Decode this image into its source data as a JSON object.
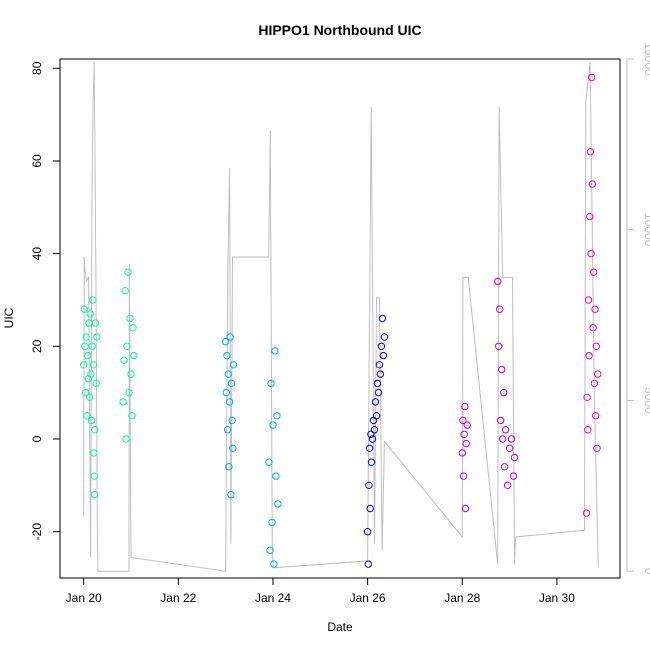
{
  "chart_data": {
    "type": "scatter",
    "title": "HIPPO1 Northbound UIC",
    "xlabel": "Date",
    "ylabel": "UIC",
    "xlim": [
      "2009-01-19T12:00",
      "2009-01-31T08:00"
    ],
    "ylim": [
      -30,
      82
    ],
    "y2lim": [
      -200,
      15000
    ],
    "x_ticks": [
      "Jan 20",
      "Jan 22",
      "Jan 24",
      "Jan 26",
      "Jan 28",
      "Jan 30"
    ],
    "x_tick_values": [
      "2009-01-20",
      "2009-01-22",
      "2009-01-24",
      "2009-01-26",
      "2009-01-28",
      "2009-01-30"
    ],
    "y_ticks": [
      "-20",
      "0",
      "20",
      "40",
      "60",
      "80"
    ],
    "y_tick_values": [
      -20,
      0,
      20,
      40,
      60,
      80
    ],
    "y2_ticks": [
      "0",
      "5000",
      "10000",
      "15000"
    ],
    "y2_tick_values": [
      0,
      5000,
      10000,
      15000
    ],
    "grid": false,
    "colors": {
      "altitude": "#bebebe",
      "flight_1": "#00ff99",
      "flight_2": "#00aaff",
      "flight_3": "#0000ff",
      "flight_4": "#aa00ff",
      "flight_5": "#ff00aa"
    },
    "altitude_series": [
      [
        "2009-01-20T00:00",
        1600
      ],
      [
        "2009-01-20T00:15",
        9200
      ],
      [
        "2009-01-20T00:40",
        8800
      ],
      [
        "2009-01-20T01:30",
        8500
      ],
      [
        "2009-01-20T02:30",
        8600
      ],
      [
        "2009-01-20T03:30",
        400
      ],
      [
        "2009-01-20T04:10",
        10800
      ],
      [
        "2009-01-20T04:40",
        13500
      ],
      [
        "2009-01-20T05:20",
        14900
      ],
      [
        "2009-01-20T06:10",
        9000
      ],
      [
        "2009-01-20T07:00",
        600
      ],
      [
        "2009-01-20T07:20",
        0
      ],
      [
        "2009-01-20T23:00",
        0
      ],
      [
        "2009-01-20T23:10",
        9000
      ],
      [
        "2009-01-21T00:00",
        400
      ],
      [
        "2009-01-23T00:00",
        0
      ],
      [
        "2009-01-23T01:10",
        9000
      ],
      [
        "2009-01-23T02:00",
        11800
      ],
      [
        "2009-01-23T02:40",
        800
      ],
      [
        "2009-01-23T03:30",
        9200
      ],
      [
        "2009-01-23T21:50",
        9200
      ],
      [
        "2009-01-23T22:40",
        12900
      ],
      [
        "2009-01-23T23:40",
        500
      ],
      [
        "2009-01-24T00:30",
        100
      ],
      [
        "2009-01-26T00:00",
        300
      ],
      [
        "2009-01-26T01:50",
        13600
      ],
      [
        "2009-01-26T03:30",
        800
      ],
      [
        "2009-01-26T04:30",
        8000
      ],
      [
        "2009-01-26T06:00",
        8000
      ],
      [
        "2009-01-26T07:20",
        600
      ],
      [
        "2009-01-26T08:30",
        3800
      ],
      [
        "2009-01-28T00:00",
        1000
      ],
      [
        "2009-01-28T00:20",
        8600
      ],
      [
        "2009-01-28T03:00",
        8600
      ],
      [
        "2009-01-28T18:00",
        200
      ],
      [
        "2009-01-28T18:40",
        13600
      ],
      [
        "2009-01-28T20:30",
        8600
      ],
      [
        "2009-01-29T01:30",
        8600
      ],
      [
        "2009-01-29T02:30",
        200
      ],
      [
        "2009-01-29T03:00",
        1000
      ],
      [
        "2009-01-30T14:00",
        1200
      ],
      [
        "2009-01-30T14:40",
        13800
      ],
      [
        "2009-01-30T16:50",
        14900
      ],
      [
        "2009-01-30T19:00",
        5000
      ],
      [
        "2009-01-30T21:00",
        100
      ]
    ],
    "series": [
      {
        "points": [
          [
            "2009-01-20T00:00",
            16
          ],
          [
            "2009-01-20T00:20",
            28
          ],
          [
            "2009-01-20T00:40",
            20
          ],
          [
            "2009-01-20T01:00",
            10
          ],
          [
            "2009-01-20T01:20",
            22
          ],
          [
            "2009-01-20T01:40",
            5
          ],
          [
            "2009-01-20T02:00",
            18
          ],
          [
            "2009-01-20T02:20",
            13
          ],
          [
            "2009-01-20T02:40",
            25
          ],
          [
            "2009-01-20T03:00",
            9
          ],
          [
            "2009-01-20T03:20",
            27
          ],
          [
            "2009-01-20T03:40",
            14
          ],
          [
            "2009-01-20T04:00",
            4
          ],
          [
            "2009-01-20T04:20",
            20
          ],
          [
            "2009-01-20T04:40",
            30
          ],
          [
            "2009-01-20T05:00",
            16
          ],
          [
            "2009-01-20T05:10",
            -3
          ],
          [
            "2009-01-20T05:20",
            -8
          ],
          [
            "2009-01-20T05:30",
            -12
          ],
          [
            "2009-01-20T05:40",
            2
          ],
          [
            "2009-01-20T06:00",
            25
          ],
          [
            "2009-01-20T06:20",
            12
          ],
          [
            "2009-01-20T06:40",
            22
          ],
          [
            "2009-01-20T20:00",
            8
          ],
          [
            "2009-01-20T20:30",
            17
          ],
          [
            "2009-01-20T21:00",
            32
          ],
          [
            "2009-01-20T21:30",
            0
          ],
          [
            "2009-01-20T22:00",
            20
          ],
          [
            "2009-01-20T22:30",
            36
          ],
          [
            "2009-01-20T23:00",
            10
          ],
          [
            "2009-01-20T23:30",
            26
          ],
          [
            "2009-01-21T00:00",
            14
          ],
          [
            "2009-01-21T00:30",
            5
          ],
          [
            "2009-01-21T01:00",
            24
          ],
          [
            "2009-01-21T01:30",
            18
          ]
        ]
      },
      {
        "points": [
          [
            "2009-01-23T00:00",
            21
          ],
          [
            "2009-01-23T00:20",
            10
          ],
          [
            "2009-01-23T00:40",
            18
          ],
          [
            "2009-01-23T01:00",
            2
          ],
          [
            "2009-01-23T01:20",
            14
          ],
          [
            "2009-01-23T01:40",
            -6
          ],
          [
            "2009-01-23T02:00",
            8
          ],
          [
            "2009-01-23T02:20",
            22
          ],
          [
            "2009-01-23T02:40",
            -12
          ],
          [
            "2009-01-23T03:00",
            12
          ],
          [
            "2009-01-23T03:20",
            4
          ],
          [
            "2009-01-23T03:40",
            -2
          ],
          [
            "2009-01-23T04:00",
            16
          ],
          [
            "2009-01-23T22:00",
            -5
          ],
          [
            "2009-01-23T22:30",
            -24
          ],
          [
            "2009-01-23T23:00",
            12
          ],
          [
            "2009-01-23T23:30",
            -18
          ],
          [
            "2009-01-24T00:00",
            3
          ],
          [
            "2009-01-24T00:30",
            -27
          ],
          [
            "2009-01-24T01:00",
            19
          ],
          [
            "2009-01-24T01:30",
            -8
          ],
          [
            "2009-01-24T02:00",
            5
          ],
          [
            "2009-01-24T02:30",
            -14
          ]
        ]
      },
      {
        "points": [
          [
            "2009-01-26T00:00",
            -20
          ],
          [
            "2009-01-26T00:20",
            -27
          ],
          [
            "2009-01-26T00:40",
            -10
          ],
          [
            "2009-01-26T01:00",
            -2
          ],
          [
            "2009-01-26T01:20",
            -15
          ],
          [
            "2009-01-26T01:40",
            1
          ],
          [
            "2009-01-26T02:00",
            -5
          ],
          [
            "2009-01-26T02:30",
            0
          ],
          [
            "2009-01-26T03:00",
            4
          ],
          [
            "2009-01-26T03:30",
            2
          ],
          [
            "2009-01-26T04:00",
            8
          ],
          [
            "2009-01-26T04:30",
            5
          ],
          [
            "2009-01-26T05:00",
            12
          ],
          [
            "2009-01-26T05:30",
            10
          ],
          [
            "2009-01-26T06:00",
            16
          ],
          [
            "2009-01-26T06:30",
            14
          ],
          [
            "2009-01-26T07:00",
            20
          ],
          [
            "2009-01-26T07:30",
            26
          ],
          [
            "2009-01-26T08:00",
            18
          ],
          [
            "2009-01-26T08:30",
            22
          ]
        ]
      },
      {
        "points": [
          [
            "2009-01-28T00:00",
            -3
          ],
          [
            "2009-01-28T00:20",
            4
          ],
          [
            "2009-01-28T00:40",
            -8
          ],
          [
            "2009-01-28T01:00",
            1
          ],
          [
            "2009-01-28T01:20",
            7
          ],
          [
            "2009-01-28T01:40",
            -15
          ],
          [
            "2009-01-28T02:00",
            -1
          ],
          [
            "2009-01-28T02:30",
            3
          ],
          [
            "2009-01-28T18:00",
            34
          ],
          [
            "2009-01-28T18:30",
            20
          ],
          [
            "2009-01-28T19:00",
            28
          ],
          [
            "2009-01-28T19:30",
            4
          ],
          [
            "2009-01-28T20:00",
            15
          ],
          [
            "2009-01-28T20:30",
            0
          ],
          [
            "2009-01-28T21:00",
            10
          ],
          [
            "2009-01-28T21:30",
            -6
          ],
          [
            "2009-01-28T22:00",
            2
          ],
          [
            "2009-01-28T23:00",
            -10
          ],
          [
            "2009-01-29T00:00",
            -2
          ],
          [
            "2009-01-29T01:00",
            0
          ],
          [
            "2009-01-29T02:00",
            -8
          ],
          [
            "2009-01-29T02:30",
            -4
          ]
        ]
      },
      {
        "points": [
          [
            "2009-01-30T15:00",
            -16
          ],
          [
            "2009-01-30T15:20",
            9
          ],
          [
            "2009-01-30T15:40",
            2
          ],
          [
            "2009-01-30T16:00",
            30
          ],
          [
            "2009-01-30T16:20",
            18
          ],
          [
            "2009-01-30T16:40",
            48
          ],
          [
            "2009-01-30T17:00",
            62
          ],
          [
            "2009-01-30T17:20",
            40
          ],
          [
            "2009-01-30T17:40",
            78
          ],
          [
            "2009-01-30T18:00",
            55
          ],
          [
            "2009-01-30T18:20",
            24
          ],
          [
            "2009-01-30T18:40",
            36
          ],
          [
            "2009-01-30T19:00",
            12
          ],
          [
            "2009-01-30T19:20",
            28
          ],
          [
            "2009-01-30T19:40",
            5
          ],
          [
            "2009-01-30T20:00",
            20
          ],
          [
            "2009-01-30T20:20",
            -2
          ],
          [
            "2009-01-30T20:40",
            14
          ]
        ]
      }
    ]
  }
}
